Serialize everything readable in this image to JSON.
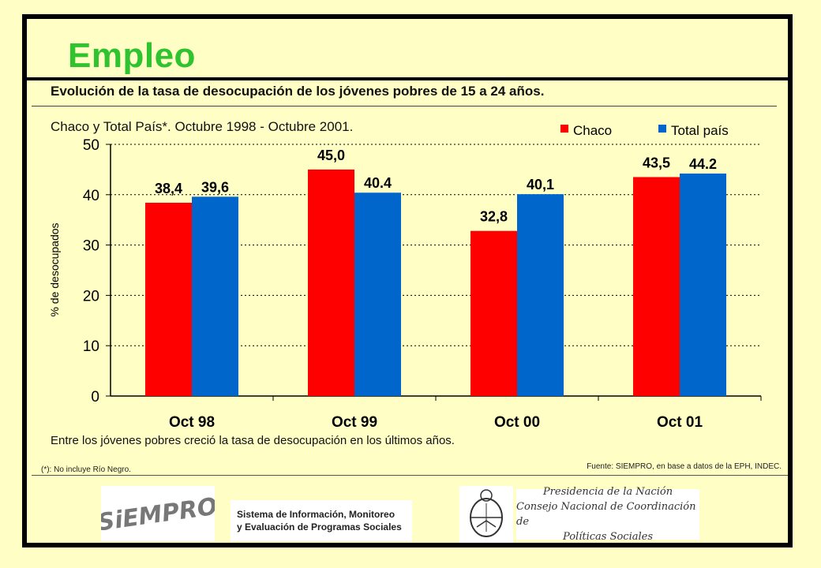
{
  "page": {
    "title": "Empleo",
    "subtitle": "Evolución de la tasa de desocupación de los jóvenes pobres de 15 a 24 años.",
    "caption": "Entre los jóvenes pobres creció la tasa de desocupación en los últimos años.",
    "footnote": "(*): No incluye Río Negro.",
    "source": "Fuente: SIEMPRO, en base a datos de la EPH, INDEC.",
    "colors": {
      "background": "#fffec4",
      "title": "#2fc42f",
      "chaco": "#ff0000",
      "total": "#0066cc"
    }
  },
  "logos": {
    "siempro": "SiEMPRO",
    "sistema_line1": "Sistema de Información, Monitoreo",
    "sistema_line2": "y Evaluación de Programas Sociales",
    "presidencia_line1": "Presidencia de la Nación",
    "presidencia_line2": "Consejo Nacional de Coordinación de",
    "presidencia_line3": "Políticas Sociales"
  },
  "chart_data": {
    "type": "bar",
    "title": "Chaco y Total País*. Octubre 1998 - Octubre 2001.",
    "xlabel": "",
    "ylabel": "% de desocupados",
    "ylim": [
      0,
      50
    ],
    "yticks": [
      "0",
      "10",
      "20",
      "30",
      "40",
      "50"
    ],
    "categories": [
      "Oct 98",
      "Oct 99",
      "Oct 00",
      "Oct 01"
    ],
    "series": [
      {
        "name": "Chaco",
        "values": [
          38.4,
          45.0,
          32.8,
          43.5
        ],
        "labels": [
          "38,4",
          "45,0",
          "32,8",
          "43,5"
        ]
      },
      {
        "name": "Total país",
        "values": [
          39.6,
          40.4,
          40.1,
          44.2
        ],
        "labels": [
          "39,6",
          "40.4",
          "40,1",
          "44.2"
        ]
      }
    ],
    "legend": "top-right",
    "grid": true
  }
}
